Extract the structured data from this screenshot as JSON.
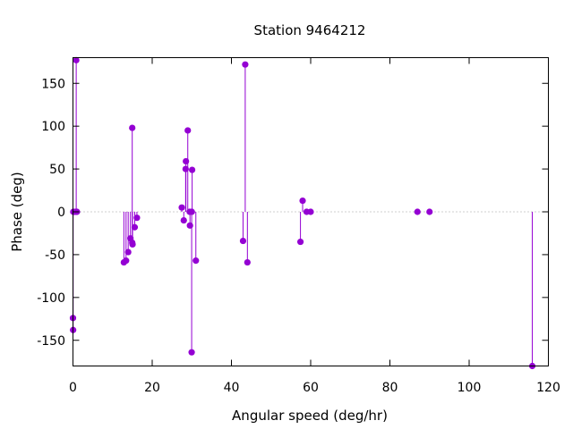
{
  "chart_data": {
    "type": "scatter",
    "style": "impulses-with-points",
    "title": "Station 9464212",
    "xlabel": "Angular speed (deg/hr)",
    "ylabel": "Phase (deg)",
    "xlim": [
      0,
      120
    ],
    "ylim": [
      -180,
      180
    ],
    "xticks": [
      0,
      20,
      40,
      60,
      80,
      100,
      120
    ],
    "yticks": [
      -150,
      -100,
      -50,
      0,
      50,
      100,
      150
    ],
    "zero_line": true,
    "grid": false,
    "color": "#9400d3",
    "points": [
      {
        "x": 0.0,
        "y": -124
      },
      {
        "x": 0.04,
        "y": -138
      },
      {
        "x": 0.08,
        "y": 0
      },
      {
        "x": 0.5,
        "y": 0
      },
      {
        "x": 0.82,
        "y": 177
      },
      {
        "x": 1.0,
        "y": 0
      },
      {
        "x": 12.85,
        "y": -59
      },
      {
        "x": 13.4,
        "y": -57
      },
      {
        "x": 13.94,
        "y": -47
      },
      {
        "x": 14.5,
        "y": -31
      },
      {
        "x": 14.96,
        "y": -36
      },
      {
        "x": 14.96,
        "y": 98
      },
      {
        "x": 15.04,
        "y": -38
      },
      {
        "x": 15.59,
        "y": -18
      },
      {
        "x": 16.14,
        "y": -7
      },
      {
        "x": 27.47,
        "y": 5
      },
      {
        "x": 27.97,
        "y": -10
      },
      {
        "x": 28.44,
        "y": 50
      },
      {
        "x": 28.51,
        "y": 59
      },
      {
        "x": 28.98,
        "y": 95
      },
      {
        "x": 29.46,
        "y": 0
      },
      {
        "x": 29.53,
        "y": -16
      },
      {
        "x": 29.96,
        "y": -164
      },
      {
        "x": 30.0,
        "y": 0
      },
      {
        "x": 30.08,
        "y": 49
      },
      {
        "x": 31.02,
        "y": -57
      },
      {
        "x": 42.93,
        "y": -34
      },
      {
        "x": 43.48,
        "y": 172
      },
      {
        "x": 44.03,
        "y": -59
      },
      {
        "x": 57.42,
        "y": -35
      },
      {
        "x": 57.97,
        "y": 13
      },
      {
        "x": 58.98,
        "y": 0
      },
      {
        "x": 60.0,
        "y": 0
      },
      {
        "x": 86.95,
        "y": 0
      },
      {
        "x": 90.0,
        "y": 0
      },
      {
        "x": 115.94,
        "y": -180
      }
    ]
  }
}
